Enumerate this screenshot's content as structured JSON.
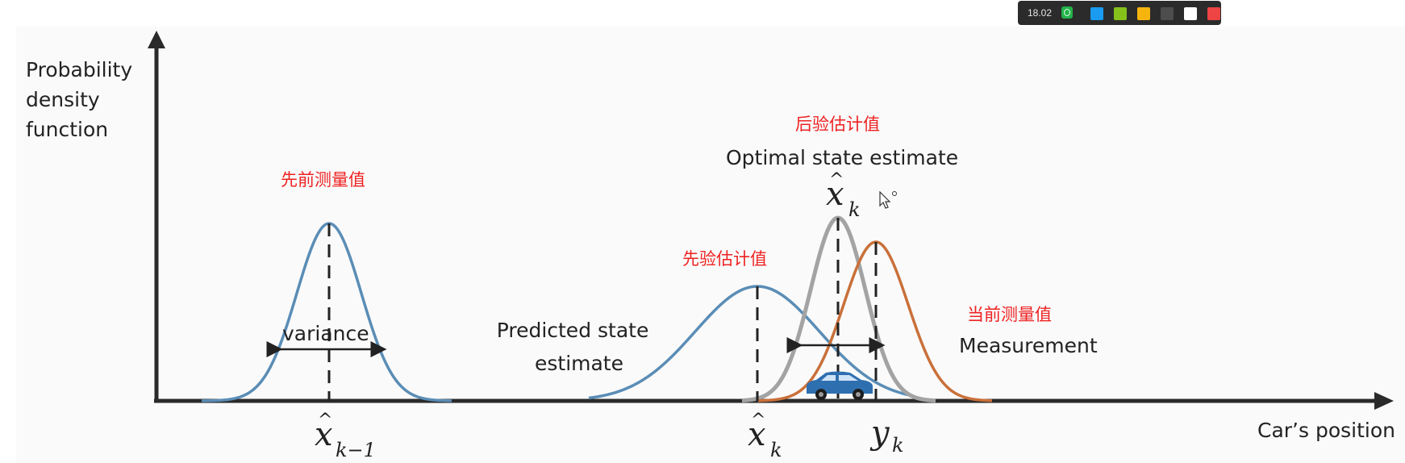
{
  "axes": {
    "y_label_lines": [
      "Probability",
      "density",
      "function"
    ],
    "x_label": "Car’s position"
  },
  "prior": {
    "annotation_cn": "先前测量值",
    "variance_label": "variance",
    "math_base": "x",
    "math_sub": "k−1"
  },
  "predicted": {
    "annotation_cn": "先验估计值",
    "label_lines": [
      "Predicted state",
      "estimate"
    ],
    "math_base": "x",
    "math_sub": "k"
  },
  "optimal": {
    "annotation_cn": "后验估计值",
    "label": "Optimal state estimate",
    "math_base": "x",
    "math_sub": "k"
  },
  "measurement": {
    "annotation_cn": "当前测量值",
    "label": "Measurement",
    "math_base": "y",
    "math_sub": "k"
  },
  "toolbar": {
    "zoom_value": "18.02",
    "swatches": [
      {
        "name": "blue",
        "color": "#1a9bef"
      },
      {
        "name": "green",
        "color": "#86c11b"
      },
      {
        "name": "yellow",
        "color": "#f6b40e"
      },
      {
        "name": "dark-gray",
        "color": "#4d4d4d"
      },
      {
        "name": "white",
        "color": "#ffffff"
      },
      {
        "name": "red",
        "color": "#ee4444"
      }
    ]
  },
  "colors": {
    "axis": "#222222",
    "blue_curve": "#5a8db6",
    "gray_curve": "#a3a3a3",
    "orange_curve": "#c9703a",
    "annotation_red": "#ee2222",
    "car_blue": "#2e6fb0"
  }
}
